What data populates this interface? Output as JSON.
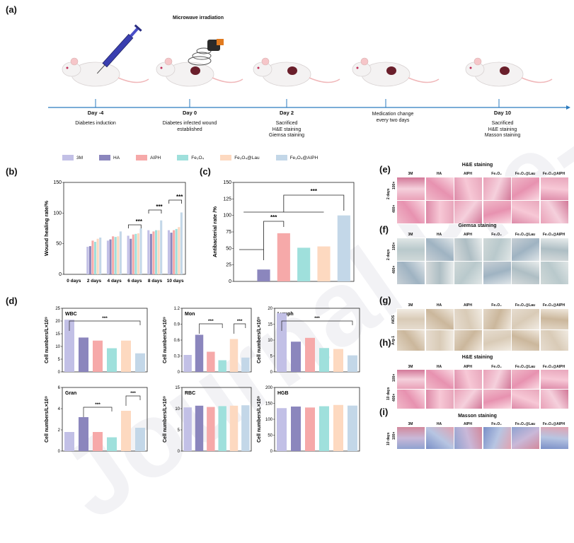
{
  "watermark": "Journal Pre-proof",
  "panels": {
    "a": "(a)",
    "b": "(b)",
    "c": "(c)",
    "d": "(d)",
    "e": "(e)",
    "f": "(f)",
    "g": "(g)",
    "h": "(h)",
    "i": "(i)"
  },
  "timeline": {
    "microwave_label": "Microwave irradiation",
    "events": [
      {
        "day": "Day -4",
        "desc": "Diabetes induction"
      },
      {
        "day": "Day 0",
        "desc": "Diabetes infected wound\nestablished"
      },
      {
        "day": "Day 2",
        "desc": "Sacrificed\nH&E staining\nGiemsa staining"
      },
      {
        "day": "",
        "desc": "Medication change\nevery two days"
      },
      {
        "day": "Day 10",
        "desc": "Sacrificed\nH&E staining\nMasson staining"
      }
    ]
  },
  "colors": {
    "3M": "#c2c0e6",
    "HA": "#8b86bd",
    "AIPH": "#f6a9a9",
    "Fe3O4": "#9fe0dc",
    "Fe3O4@Lau": "#fdd9c0",
    "Fe3O4@AIPH": "#c3d7e8"
  },
  "legend": [
    "3M",
    "HA",
    "AIPH",
    "Fe₃O₄",
    "Fe₃O₄@Lau",
    "Fe₃O₄@AIPH"
  ],
  "micro": {
    "e_title": "H&E staining",
    "f_title": "Giemsa staining",
    "h_title": "H&E staining",
    "i_title": "Masson staining",
    "cols": [
      "3M",
      "HA",
      "AIPH",
      "Fe₃O₄",
      "Fe₃O₄@Lau",
      "Fe₃O₄@AIPH"
    ],
    "mag100": "100×",
    "mag400": "400×",
    "day2": "2 days",
    "day10": "10 days",
    "iNOS": "iNOS",
    "Arg1": "Arg-1",
    "sig": "***"
  },
  "chart_data": [
    {
      "id": "b",
      "type": "bar",
      "title": "",
      "ylabel": "Wound healing rate/%",
      "categories": [
        "0 days",
        "2 days",
        "4 days",
        "6 days",
        "8 days",
        "10 days"
      ],
      "ylim": [
        0,
        150
      ],
      "yticks": [
        0,
        50,
        100,
        150
      ],
      "series": [
        {
          "name": "3M",
          "values": [
            0,
            45,
            55,
            63,
            72,
            72
          ]
        },
        {
          "name": "HA",
          "values": [
            0,
            46,
            57,
            58,
            66,
            68
          ]
        },
        {
          "name": "AIPH",
          "values": [
            0,
            55,
            62,
            65,
            70,
            72
          ]
        },
        {
          "name": "Fe3O4",
          "values": [
            0,
            53,
            61,
            66,
            72,
            74
          ]
        },
        {
          "name": "Fe3O4@Lau",
          "values": [
            0,
            58,
            62,
            67,
            72,
            77
          ]
        },
        {
          "name": "Fe3O4@AIPH",
          "values": [
            0,
            60,
            70,
            75,
            88,
            101
          ]
        }
      ],
      "annotations": [
        "***",
        "***",
        "***"
      ]
    },
    {
      "id": "c",
      "type": "bar",
      "ylabel": "Antibacterial rate /%",
      "categories": [
        "3M",
        "HA",
        "AIPH",
        "Fe3O4",
        "Fe3O4@Lau",
        "Fe3O4@AIPH"
      ],
      "values": [
        0,
        18,
        73,
        51,
        53,
        100
      ],
      "ylim": [
        0,
        150
      ],
      "yticks": [
        0,
        25,
        50,
        75,
        100,
        125,
        150
      ],
      "annotations": [
        "***",
        "***"
      ]
    },
    {
      "id": "d-wbc",
      "type": "bar",
      "title": "WBC",
      "ylabel": "Cell numbers/L×10⁹",
      "ylim": [
        0,
        25
      ],
      "yticks": [
        0,
        5,
        10,
        15,
        20,
        25
      ],
      "categories": [
        "3M",
        "HA",
        "AIPH",
        "Fe3O4",
        "Fe3O4@Lau",
        "Fe3O4@AIPH"
      ],
      "values": [
        20.5,
        13.5,
        12.3,
        9.3,
        12.3,
        7.3
      ],
      "annotations": [
        "***"
      ]
    },
    {
      "id": "d-mon",
      "type": "bar",
      "title": "Mon",
      "ylabel": "Cell numbers/L×10⁹",
      "ylim": [
        0,
        1.2
      ],
      "yticks": [
        0.0,
        0.3,
        0.6,
        0.9,
        1.2
      ],
      "categories": [
        "3M",
        "HA",
        "AIPH",
        "Fe3O4",
        "Fe3O4@Lau",
        "Fe3O4@AIPH"
      ],
      "values": [
        0.32,
        0.7,
        0.38,
        0.22,
        0.62,
        0.27
      ],
      "annotations": [
        "***",
        "***"
      ]
    },
    {
      "id": "d-lymph",
      "type": "bar",
      "title": "Lymph",
      "ylabel": "Cell numbers/L×10⁹",
      "ylim": [
        0,
        20
      ],
      "yticks": [
        0,
        5,
        10,
        15,
        20
      ],
      "categories": [
        "3M",
        "HA",
        "AIPH",
        "Fe3O4",
        "Fe3O4@Lau",
        "Fe3O4@AIPH"
      ],
      "values": [
        18.5,
        9.5,
        10.7,
        7.5,
        7.2,
        5.2
      ],
      "annotations": [
        "***"
      ]
    },
    {
      "id": "d-gran",
      "type": "bar",
      "title": "Gran",
      "ylabel": "Cell numbers/L×10⁹",
      "ylim": [
        0,
        6
      ],
      "yticks": [
        0,
        2,
        4,
        6
      ],
      "categories": [
        "3M",
        "HA",
        "AIPH",
        "Fe3O4",
        "Fe3O4@Lau",
        "Fe3O4@AIPH"
      ],
      "values": [
        1.8,
        3.2,
        1.8,
        1.3,
        3.8,
        2.2
      ],
      "annotations": [
        "***",
        "***"
      ]
    },
    {
      "id": "d-rbc",
      "type": "bar",
      "title": "RBC",
      "ylabel": "Cell numbers/L×10⁹",
      "ylim": [
        0,
        15
      ],
      "yticks": [
        0,
        5,
        10,
        15
      ],
      "categories": [
        "3M",
        "HA",
        "AIPH",
        "Fe3O4",
        "Fe3O4@Lau",
        "Fe3O4@AIPH"
      ],
      "values": [
        10.3,
        10.7,
        10.4,
        10.6,
        10.7,
        10.8
      ],
      "annotations": []
    },
    {
      "id": "d-hgb",
      "type": "bar",
      "title": "HGB",
      "ylabel": "Cell numbers/L×10⁹",
      "ylim": [
        0,
        200
      ],
      "yticks": [
        0,
        50,
        100,
        150,
        200
      ],
      "categories": [
        "3M",
        "HA",
        "AIPH",
        "Fe3O4",
        "Fe3O4@Lau",
        "Fe3O4@AIPH"
      ],
      "values": [
        135,
        140,
        137,
        141,
        145,
        143
      ],
      "annotations": []
    }
  ]
}
